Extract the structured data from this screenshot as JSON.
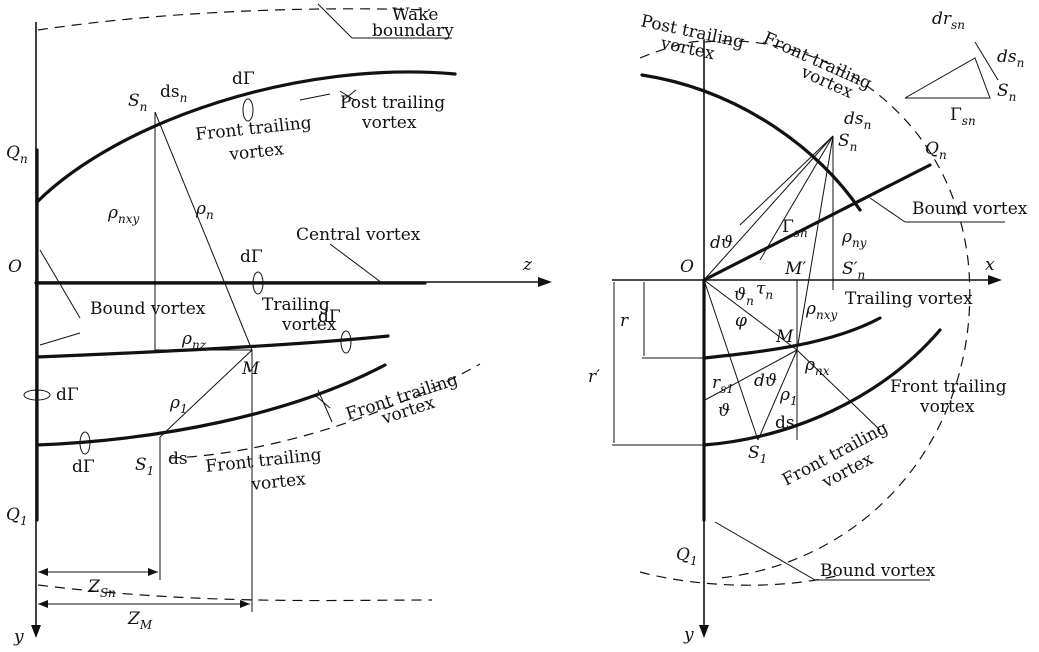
{
  "left": {
    "wake_boundary": [
      "Wake",
      "boundary"
    ],
    "post_trailing_vortex": [
      "Post trailing",
      "vortex"
    ],
    "front_trailing_vortex_top": [
      "Front trailing",
      "vortex"
    ],
    "central_vortex": "Central vortex",
    "bound_vortex": "Bound vortex",
    "trailing_vortex": [
      "Trailing",
      "vortex"
    ],
    "front_trailing_vortex_right": [
      "Front trailing",
      "vortex"
    ],
    "front_trailing_vortex_bottom": [
      "Front trailing",
      "vortex"
    ],
    "dGamma": "dΓ",
    "S": "S",
    "n": "n",
    "ds": "ds",
    "one": "1",
    "Q": "Q",
    "O": "O",
    "z": "z",
    "y": "y",
    "M": "M",
    "rho": "ρ",
    "nxy": "nxy",
    "nz": "nz",
    "Z": "Z",
    "Sn": "Sn",
    "subM": "M"
  },
  "right": {
    "post_trailing_vortex": [
      "Post trailing",
      "vortex"
    ],
    "front_trailing_vortex_top": [
      "Front trailing",
      "vortex"
    ],
    "bound_vortex_top": "Bound vortex",
    "trailing_vortex": "Trailing vortex",
    "front_trailing_vortex_right": [
      "Front trailing",
      "vortex"
    ],
    "front_trailing_vortex_bottom": [
      "Front trailing",
      "vortex"
    ],
    "bound_vortex_bottom": "Bound vortex",
    "d": "d",
    "r": "r",
    "r_prime": "r′",
    "s": "s",
    "n": "n",
    "sn": "sn",
    "s1": "s1",
    "S": "S",
    "Q": "Q",
    "Gamma": "Γ",
    "O": "O",
    "x": "x",
    "y": "y",
    "M": "M",
    "M_prime": "M′",
    "S_prime": "S′",
    "subn": "n",
    "rho": "ρ",
    "ny": "ny",
    "nxy": "nxy",
    "nx": "nx",
    "one": "1",
    "theta": "ϑ",
    "tau": "τ",
    "phi": "φ",
    "dtheta": "dϑ",
    "ds": "ds"
  }
}
